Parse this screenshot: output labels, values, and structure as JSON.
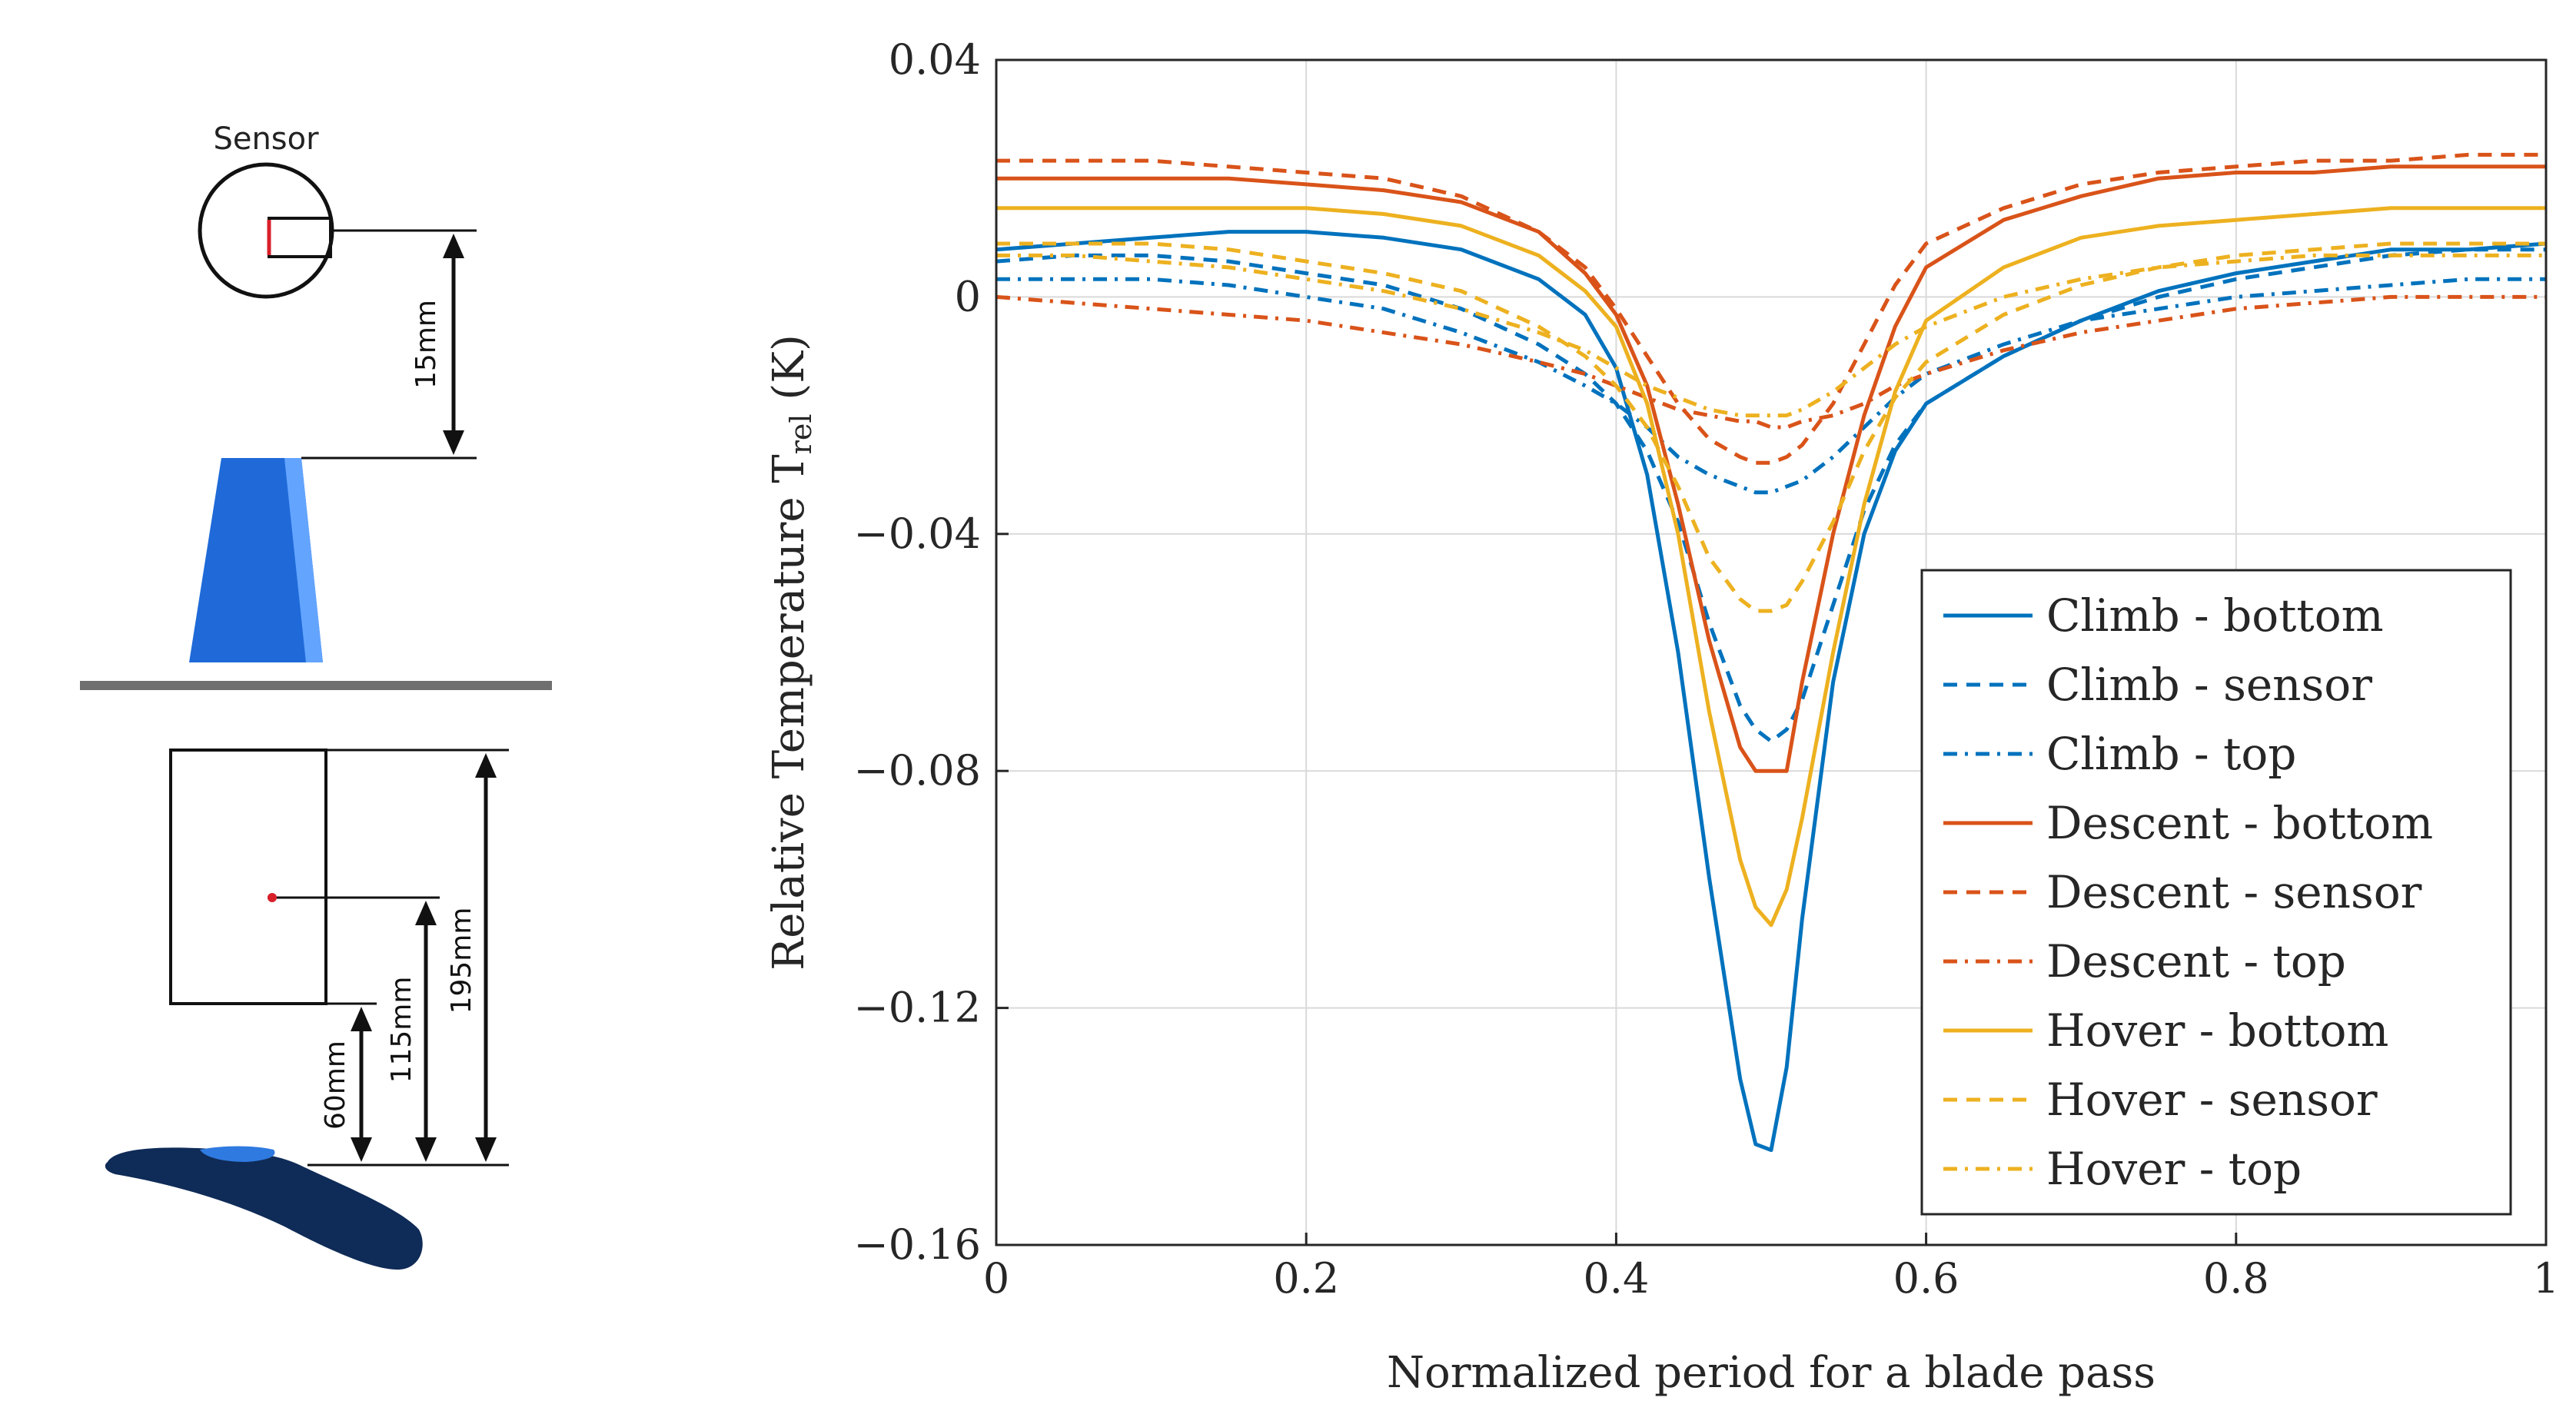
{
  "diagram": {
    "sensor_label": "Sensor",
    "dim_15": "15mm",
    "dim_195": "195mm",
    "dim_115": "115mm",
    "dim_60": "60mm"
  },
  "chart_data": {
    "type": "line",
    "title": "",
    "xlabel": "Normalized period for a blade pass",
    "ylabel_main": "Relative Temperature T",
    "ylabel_sub": "rel",
    "ylabel_unit": " (K)",
    "xlim": [
      0,
      1
    ],
    "ylim": [
      -0.16,
      0.04
    ],
    "xticks": [
      0,
      0.2,
      0.4,
      0.6,
      0.8,
      1
    ],
    "xtick_labels": [
      "0",
      "0.2",
      "0.4",
      "0.6",
      "0.8",
      "1"
    ],
    "yticks": [
      0.04,
      0,
      -0.04,
      -0.08,
      -0.12,
      -0.16
    ],
    "ytick_labels": [
      "0.04",
      "0",
      "−0.04",
      "−0.08",
      "−0.12",
      "−0.16"
    ],
    "grid": true,
    "legend_position": "bottom-right",
    "x": [
      0,
      0.05,
      0.1,
      0.15,
      0.2,
      0.25,
      0.3,
      0.35,
      0.38,
      0.4,
      0.42,
      0.44,
      0.46,
      0.48,
      0.49,
      0.5,
      0.51,
      0.52,
      0.54,
      0.56,
      0.58,
      0.6,
      0.65,
      0.7,
      0.75,
      0.8,
      0.85,
      0.9,
      0.95,
      1
    ],
    "series": [
      {
        "name": "Climb - bottom",
        "color": "#0072BD",
        "dash": "solid",
        "values": [
          0.008,
          0.009,
          0.01,
          0.011,
          0.011,
          0.01,
          0.008,
          0.003,
          -0.003,
          -0.012,
          -0.03,
          -0.06,
          -0.098,
          -0.132,
          -0.143,
          -0.144,
          -0.13,
          -0.105,
          -0.065,
          -0.04,
          -0.026,
          -0.018,
          -0.01,
          -0.004,
          0.001,
          0.004,
          0.006,
          0.008,
          0.008,
          0.009
        ]
      },
      {
        "name": "Climb - sensor",
        "color": "#0072BD",
        "dash": "dash",
        "values": [
          0.006,
          0.007,
          0.007,
          0.006,
          0.004,
          0.002,
          -0.002,
          -0.008,
          -0.013,
          -0.018,
          -0.026,
          -0.038,
          -0.055,
          -0.069,
          -0.073,
          -0.075,
          -0.073,
          -0.068,
          -0.052,
          -0.036,
          -0.025,
          -0.018,
          -0.01,
          -0.004,
          0.0,
          0.003,
          0.005,
          0.007,
          0.008,
          0.008
        ]
      },
      {
        "name": "Climb - top",
        "color": "#0072BD",
        "dash": "dashdot",
        "values": [
          0.003,
          0.003,
          0.003,
          0.002,
          0.0,
          -0.002,
          -0.006,
          -0.011,
          -0.015,
          -0.018,
          -0.022,
          -0.027,
          -0.03,
          -0.032,
          -0.033,
          -0.033,
          -0.032,
          -0.031,
          -0.027,
          -0.022,
          -0.017,
          -0.013,
          -0.008,
          -0.004,
          -0.002,
          0.0,
          0.001,
          0.002,
          0.003,
          0.003
        ]
      },
      {
        "name": "Descent - bottom",
        "color": "#D95319",
        "dash": "solid",
        "values": [
          0.02,
          0.02,
          0.02,
          0.02,
          0.019,
          0.018,
          0.016,
          0.011,
          0.004,
          -0.003,
          -0.015,
          -0.035,
          -0.058,
          -0.076,
          -0.08,
          -0.08,
          -0.08,
          -0.065,
          -0.04,
          -0.02,
          -0.005,
          0.005,
          0.013,
          0.017,
          0.02,
          0.021,
          0.021,
          0.022,
          0.022,
          0.022
        ]
      },
      {
        "name": "Descent - sensor",
        "color": "#D95319",
        "dash": "dash",
        "values": [
          0.023,
          0.023,
          0.023,
          0.022,
          0.021,
          0.02,
          0.017,
          0.011,
          0.005,
          -0.002,
          -0.01,
          -0.018,
          -0.024,
          -0.027,
          -0.028,
          -0.028,
          -0.027,
          -0.025,
          -0.018,
          -0.008,
          0.002,
          0.009,
          0.015,
          0.019,
          0.021,
          0.022,
          0.023,
          0.023,
          0.024,
          0.024
        ]
      },
      {
        "name": "Descent - top",
        "color": "#D95319",
        "dash": "dashdot",
        "values": [
          0.0,
          -0.001,
          -0.002,
          -0.003,
          -0.004,
          -0.006,
          -0.008,
          -0.011,
          -0.013,
          -0.015,
          -0.017,
          -0.019,
          -0.02,
          -0.021,
          -0.021,
          -0.022,
          -0.022,
          -0.021,
          -0.02,
          -0.018,
          -0.015,
          -0.013,
          -0.009,
          -0.006,
          -0.004,
          -0.002,
          -0.001,
          0.0,
          0.0,
          0.0
        ]
      },
      {
        "name": "Hover - bottom",
        "color": "#EDB120",
        "dash": "solid",
        "values": [
          0.015,
          0.015,
          0.015,
          0.015,
          0.015,
          0.014,
          0.012,
          0.007,
          0.001,
          -0.005,
          -0.018,
          -0.04,
          -0.07,
          -0.095,
          -0.103,
          -0.106,
          -0.1,
          -0.088,
          -0.06,
          -0.035,
          -0.016,
          -0.004,
          0.005,
          0.01,
          0.012,
          0.013,
          0.014,
          0.015,
          0.015,
          0.015
        ]
      },
      {
        "name": "Hover - sensor",
        "color": "#EDB120",
        "dash": "dash",
        "values": [
          0.009,
          0.009,
          0.009,
          0.008,
          0.006,
          0.004,
          0.001,
          -0.005,
          -0.01,
          -0.015,
          -0.022,
          -0.032,
          -0.044,
          -0.051,
          -0.053,
          -0.053,
          -0.052,
          -0.048,
          -0.038,
          -0.026,
          -0.017,
          -0.011,
          -0.003,
          0.002,
          0.005,
          0.007,
          0.008,
          0.009,
          0.009,
          0.009
        ]
      },
      {
        "name": "Hover - top",
        "color": "#EDB120",
        "dash": "dashdot",
        "values": [
          0.007,
          0.007,
          0.006,
          0.005,
          0.003,
          0.001,
          -0.002,
          -0.006,
          -0.009,
          -0.012,
          -0.015,
          -0.017,
          -0.019,
          -0.02,
          -0.02,
          -0.02,
          -0.02,
          -0.019,
          -0.016,
          -0.012,
          -0.008,
          -0.005,
          0.0,
          0.003,
          0.005,
          0.006,
          0.007,
          0.007,
          0.007,
          0.007
        ]
      }
    ]
  }
}
